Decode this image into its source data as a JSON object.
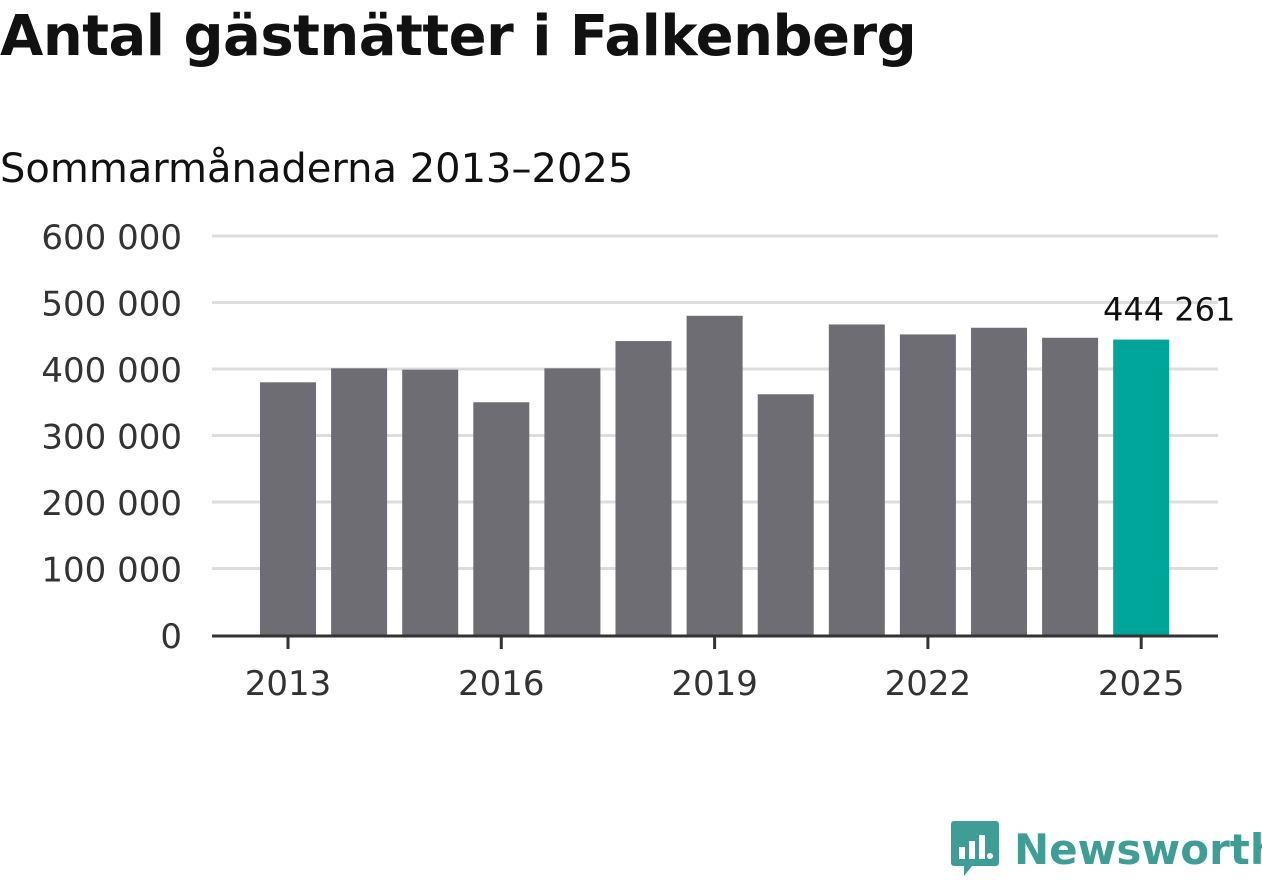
{
  "title": "Antal gästnätter i Falkenberg",
  "subtitle": "Sommarmånaderna 2013–2025",
  "brand": "Newsworthy",
  "colors": {
    "bar": "#6e6d73",
    "highlight": "#00a59a",
    "grid": "#dddddd",
    "axis": "#333333",
    "brand": "#3e9e96"
  },
  "chart_data": {
    "type": "bar",
    "categories": [
      "2013",
      "2014",
      "2015",
      "2016",
      "2017",
      "2018",
      "2019",
      "2020",
      "2021",
      "2022",
      "2023",
      "2024",
      "2025"
    ],
    "values": [
      380000,
      401000,
      399000,
      350000,
      401000,
      442000,
      480000,
      362000,
      467000,
      452000,
      462000,
      447000,
      444261
    ],
    "highlight_index": 12,
    "data_label": "444 261",
    "ylim": [
      0,
      600000
    ],
    "yticks": [
      {
        "value": 0,
        "label": "0"
      },
      {
        "value": 100000,
        "label": "100 000"
      },
      {
        "value": 200000,
        "label": "200 000"
      },
      {
        "value": 300000,
        "label": "300 000"
      },
      {
        "value": 400000,
        "label": "400 000"
      },
      {
        "value": 500000,
        "label": "500 000"
      },
      {
        "value": 600000,
        "label": "600 000"
      }
    ],
    "xtick_labels": [
      "2013",
      "2016",
      "2019",
      "2022",
      "2025"
    ],
    "grid": true,
    "xlabel": "",
    "ylabel": ""
  }
}
